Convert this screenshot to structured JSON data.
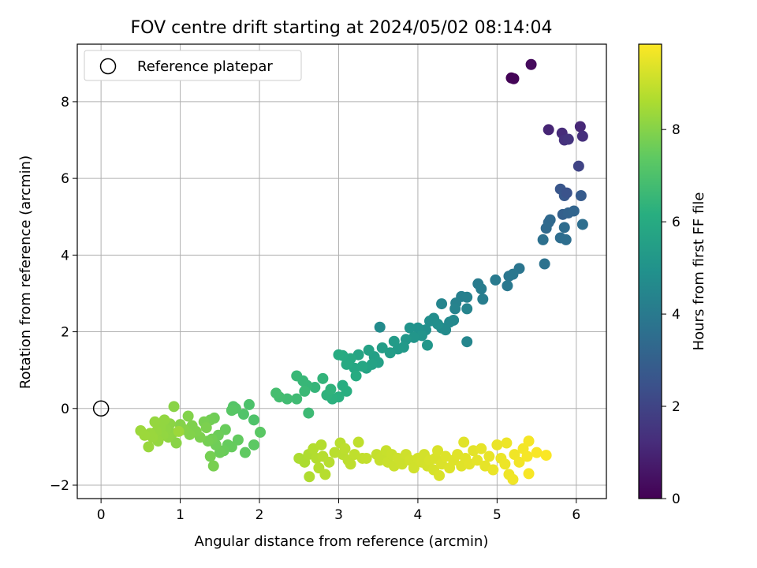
{
  "chart_data": {
    "type": "scatter",
    "title": "FOV centre drift starting at 2024/05/02 08:14:04",
    "xlabel": "Angular distance from reference (arcmin)",
    "ylabel": "Rotation from reference (arcmin)",
    "xlim": [
      -0.3,
      6.38
    ],
    "ylim": [
      -2.35,
      9.5
    ],
    "xticks": [
      "0",
      "1",
      "2",
      "3",
      "4",
      "5",
      "6"
    ],
    "xtick_values": [
      0,
      1,
      2,
      3,
      4,
      5,
      6
    ],
    "yticks": [
      "−2",
      "0",
      "2",
      "4",
      "6",
      "8"
    ],
    "ytick_values": [
      -2,
      0,
      2,
      4,
      6,
      8
    ],
    "grid": true,
    "legend": {
      "position": "top-left",
      "entry": "Reference platepar"
    },
    "reference_point": {
      "x": 0,
      "y": 0
    },
    "colorbar": {
      "label": "Hours from first FF file",
      "range": [
        0,
        9.85
      ],
      "ticks": [
        "0",
        "2",
        "4",
        "6",
        "8"
      ],
      "tick_values": [
        0,
        2,
        4,
        6,
        8
      ],
      "colormap": "viridis"
    },
    "points": [
      {
        "x": 5.18,
        "y": 8.62,
        "h": 0.05
      },
      {
        "x": 5.21,
        "y": 8.6,
        "h": 0.1
      },
      {
        "x": 5.43,
        "y": 8.97,
        "h": 0.25
      },
      {
        "x": 5.65,
        "y": 7.27,
        "h": 1.0
      },
      {
        "x": 5.82,
        "y": 7.18,
        "h": 1.2
      },
      {
        "x": 5.85,
        "y": 7.0,
        "h": 1.35
      },
      {
        "x": 5.9,
        "y": 7.02,
        "h": 1.45
      },
      {
        "x": 6.05,
        "y": 7.35,
        "h": 1.1
      },
      {
        "x": 6.08,
        "y": 7.1,
        "h": 1.3
      },
      {
        "x": 6.03,
        "y": 6.32,
        "h": 2.0
      },
      {
        "x": 5.8,
        "y": 5.72,
        "h": 2.6
      },
      {
        "x": 5.85,
        "y": 5.55,
        "h": 2.7
      },
      {
        "x": 5.88,
        "y": 5.62,
        "h": 2.5
      },
      {
        "x": 6.06,
        "y": 5.55,
        "h": 2.8
      },
      {
        "x": 5.83,
        "y": 5.06,
        "h": 3.0
      },
      {
        "x": 5.9,
        "y": 5.1,
        "h": 3.1
      },
      {
        "x": 5.97,
        "y": 5.15,
        "h": 3.2
      },
      {
        "x": 5.65,
        "y": 4.85,
        "h": 3.3
      },
      {
        "x": 5.67,
        "y": 4.92,
        "h": 3.35
      },
      {
        "x": 5.62,
        "y": 4.7,
        "h": 3.4
      },
      {
        "x": 5.85,
        "y": 4.72,
        "h": 3.45
      },
      {
        "x": 5.8,
        "y": 4.45,
        "h": 3.5
      },
      {
        "x": 5.87,
        "y": 4.4,
        "h": 3.55
      },
      {
        "x": 5.58,
        "y": 4.4,
        "h": 3.6
      },
      {
        "x": 6.08,
        "y": 4.8,
        "h": 3.55
      },
      {
        "x": 5.6,
        "y": 3.77,
        "h": 3.7
      },
      {
        "x": 5.28,
        "y": 3.65,
        "h": 3.8
      },
      {
        "x": 5.15,
        "y": 3.45,
        "h": 3.85
      },
      {
        "x": 5.2,
        "y": 3.5,
        "h": 3.9
      },
      {
        "x": 5.13,
        "y": 3.2,
        "h": 3.95
      },
      {
        "x": 4.98,
        "y": 3.35,
        "h": 4.0
      },
      {
        "x": 4.76,
        "y": 3.25,
        "h": 4.05
      },
      {
        "x": 4.8,
        "y": 3.12,
        "h": 4.1
      },
      {
        "x": 4.82,
        "y": 2.85,
        "h": 4.15
      },
      {
        "x": 4.55,
        "y": 2.92,
        "h": 4.2
      },
      {
        "x": 4.62,
        "y": 2.9,
        "h": 4.25
      },
      {
        "x": 4.48,
        "y": 2.75,
        "h": 4.3
      },
      {
        "x": 4.47,
        "y": 2.6,
        "h": 4.35
      },
      {
        "x": 4.62,
        "y": 2.6,
        "h": 4.4
      },
      {
        "x": 4.3,
        "y": 2.73,
        "h": 4.45
      },
      {
        "x": 4.62,
        "y": 1.74,
        "h": 4.5
      },
      {
        "x": 4.45,
        "y": 2.3,
        "h": 4.55
      },
      {
        "x": 4.4,
        "y": 2.25,
        "h": 4.6
      },
      {
        "x": 4.3,
        "y": 2.1,
        "h": 4.65
      },
      {
        "x": 4.35,
        "y": 2.05,
        "h": 4.7
      },
      {
        "x": 4.2,
        "y": 2.35,
        "h": 4.75
      },
      {
        "x": 4.15,
        "y": 2.28,
        "h": 4.8
      },
      {
        "x": 4.25,
        "y": 2.2,
        "h": 4.85
      },
      {
        "x": 4.1,
        "y": 2.05,
        "h": 4.9
      },
      {
        "x": 4.0,
        "y": 2.1,
        "h": 4.95
      },
      {
        "x": 3.9,
        "y": 2.1,
        "h": 5.0
      },
      {
        "x": 4.05,
        "y": 1.9,
        "h": 5.05
      },
      {
        "x": 3.95,
        "y": 1.85,
        "h": 5.1
      },
      {
        "x": 4.12,
        "y": 1.65,
        "h": 5.15
      },
      {
        "x": 3.85,
        "y": 1.8,
        "h": 5.2
      },
      {
        "x": 3.82,
        "y": 1.6,
        "h": 5.25
      },
      {
        "x": 3.75,
        "y": 1.55,
        "h": 5.3
      },
      {
        "x": 3.7,
        "y": 1.75,
        "h": 5.35
      },
      {
        "x": 3.65,
        "y": 1.45,
        "h": 5.4
      },
      {
        "x": 3.55,
        "y": 1.58,
        "h": 5.45
      },
      {
        "x": 3.52,
        "y": 2.12,
        "h": 4.7
      },
      {
        "x": 3.45,
        "y": 1.35,
        "h": 5.5
      },
      {
        "x": 3.5,
        "y": 1.2,
        "h": 5.55
      },
      {
        "x": 3.38,
        "y": 1.52,
        "h": 5.6
      },
      {
        "x": 3.42,
        "y": 1.15,
        "h": 5.65
      },
      {
        "x": 3.35,
        "y": 1.05,
        "h": 5.7
      },
      {
        "x": 3.25,
        "y": 1.4,
        "h": 5.75
      },
      {
        "x": 3.3,
        "y": 1.1,
        "h": 5.8
      },
      {
        "x": 3.2,
        "y": 1.05,
        "h": 5.85
      },
      {
        "x": 3.15,
        "y": 1.3,
        "h": 5.9
      },
      {
        "x": 3.1,
        "y": 1.15,
        "h": 5.95
      },
      {
        "x": 3.05,
        "y": 1.38,
        "h": 6.0
      },
      {
        "x": 3.0,
        "y": 1.4,
        "h": 6.02
      },
      {
        "x": 3.22,
        "y": 0.85,
        "h": 6.05
      },
      {
        "x": 3.05,
        "y": 0.6,
        "h": 6.1
      },
      {
        "x": 3.1,
        "y": 0.45,
        "h": 6.15
      },
      {
        "x": 3.0,
        "y": 0.3,
        "h": 6.2
      },
      {
        "x": 2.92,
        "y": 0.25,
        "h": 6.25
      },
      {
        "x": 2.85,
        "y": 0.35,
        "h": 6.3
      },
      {
        "x": 2.9,
        "y": 0.5,
        "h": 6.35
      },
      {
        "x": 2.8,
        "y": 0.78,
        "h": 6.4
      },
      {
        "x": 2.7,
        "y": 0.55,
        "h": 6.45
      },
      {
        "x": 2.6,
        "y": 0.6,
        "h": 6.5
      },
      {
        "x": 2.55,
        "y": 0.72,
        "h": 6.52
      },
      {
        "x": 2.47,
        "y": 0.85,
        "h": 6.55
      },
      {
        "x": 2.57,
        "y": 0.45,
        "h": 6.6
      },
      {
        "x": 2.62,
        "y": -0.12,
        "h": 6.65
      },
      {
        "x": 2.47,
        "y": 0.25,
        "h": 6.7
      },
      {
        "x": 2.35,
        "y": 0.25,
        "h": 6.75
      },
      {
        "x": 2.25,
        "y": 0.3,
        "h": 6.8
      },
      {
        "x": 2.21,
        "y": 0.4,
        "h": 6.85
      },
      {
        "x": 1.87,
        "y": 0.1,
        "h": 7.0
      },
      {
        "x": 1.93,
        "y": -0.3,
        "h": 7.05
      },
      {
        "x": 1.8,
        "y": -0.15,
        "h": 7.1
      },
      {
        "x": 1.67,
        "y": 0.05,
        "h": 7.15
      },
      {
        "x": 1.7,
        "y": 0.0,
        "h": 7.2
      },
      {
        "x": 1.65,
        "y": -0.05,
        "h": 7.25
      },
      {
        "x": 2.01,
        "y": -0.62,
        "h": 7.3
      },
      {
        "x": 1.93,
        "y": -0.95,
        "h": 7.35
      },
      {
        "x": 1.82,
        "y": -1.15,
        "h": 7.4
      },
      {
        "x": 1.73,
        "y": -0.82,
        "h": 7.45
      },
      {
        "x": 1.65,
        "y": -1.0,
        "h": 7.5
      },
      {
        "x": 1.6,
        "y": -0.95,
        "h": 7.5
      },
      {
        "x": 1.57,
        "y": -0.55,
        "h": 7.55
      },
      {
        "x": 1.55,
        "y": -1.1,
        "h": 7.55
      },
      {
        "x": 1.5,
        "y": -1.15,
        "h": 7.6
      },
      {
        "x": 1.48,
        "y": -0.7,
        "h": 7.6
      },
      {
        "x": 1.45,
        "y": -0.95,
        "h": 7.65
      },
      {
        "x": 1.43,
        "y": -0.25,
        "h": 7.65
      },
      {
        "x": 1.38,
        "y": -0.3,
        "h": 7.7
      },
      {
        "x": 1.4,
        "y": -0.8,
        "h": 7.7
      },
      {
        "x": 1.35,
        "y": -0.85,
        "h": 7.75
      },
      {
        "x": 1.38,
        "y": -1.25,
        "h": 7.75
      },
      {
        "x": 1.42,
        "y": -1.5,
        "h": 7.8
      },
      {
        "x": 1.3,
        "y": -0.35,
        "h": 7.8
      },
      {
        "x": 1.33,
        "y": -0.5,
        "h": 7.85
      },
      {
        "x": 1.25,
        "y": -0.75,
        "h": 7.85
      },
      {
        "x": 1.2,
        "y": -0.6,
        "h": 7.9
      },
      {
        "x": 1.15,
        "y": -0.45,
        "h": 7.9
      },
      {
        "x": 1.1,
        "y": -0.2,
        "h": 7.95
      },
      {
        "x": 1.12,
        "y": -0.68,
        "h": 7.95
      },
      {
        "x": 1.05,
        "y": -0.55,
        "h": 8.0
      },
      {
        "x": 1.0,
        "y": -0.42,
        "h": 8.0
      },
      {
        "x": 0.95,
        "y": -0.9,
        "h": 8.05
      },
      {
        "x": 0.92,
        "y": 0.05,
        "h": 8.05
      },
      {
        "x": 0.9,
        "y": -0.65,
        "h": 8.1
      },
      {
        "x": 0.87,
        "y": -0.4,
        "h": 8.1
      },
      {
        "x": 0.85,
        "y": -0.75,
        "h": 8.15
      },
      {
        "x": 0.82,
        "y": -0.55,
        "h": 8.15
      },
      {
        "x": 0.8,
        "y": -0.3,
        "h": 8.2
      },
      {
        "x": 0.78,
        "y": -0.7,
        "h": 8.2
      },
      {
        "x": 0.75,
        "y": -0.5,
        "h": 8.2
      },
      {
        "x": 0.72,
        "y": -0.85,
        "h": 8.25
      },
      {
        "x": 0.7,
        "y": -0.6,
        "h": 8.25
      },
      {
        "x": 0.68,
        "y": -0.35,
        "h": 8.25
      },
      {
        "x": 0.65,
        "y": -0.75,
        "h": 8.3
      },
      {
        "x": 0.62,
        "y": -0.65,
        "h": 8.3
      },
      {
        "x": 0.6,
        "y": -1.0,
        "h": 8.3
      },
      {
        "x": 0.55,
        "y": -0.7,
        "h": 8.35
      },
      {
        "x": 0.5,
        "y": -0.58,
        "h": 8.35
      },
      {
        "x": 0.98,
        "y": -0.6,
        "h": 8.35
      },
      {
        "x": 2.5,
        "y": -1.3,
        "h": 8.6
      },
      {
        "x": 2.57,
        "y": -1.4,
        "h": 8.6
      },
      {
        "x": 2.62,
        "y": -1.2,
        "h": 8.65
      },
      {
        "x": 2.63,
        "y": -1.78,
        "h": 8.65
      },
      {
        "x": 2.68,
        "y": -1.05,
        "h": 8.7
      },
      {
        "x": 2.72,
        "y": -1.3,
        "h": 8.7
      },
      {
        "x": 2.75,
        "y": -1.55,
        "h": 8.72
      },
      {
        "x": 2.78,
        "y": -0.95,
        "h": 8.72
      },
      {
        "x": 2.8,
        "y": -1.25,
        "h": 8.75
      },
      {
        "x": 2.83,
        "y": -1.72,
        "h": 8.75
      },
      {
        "x": 2.88,
        "y": -1.4,
        "h": 8.78
      },
      {
        "x": 2.95,
        "y": -1.15,
        "h": 8.8
      },
      {
        "x": 3.02,
        "y": -0.9,
        "h": 8.8
      },
      {
        "x": 3.05,
        "y": -1.2,
        "h": 8.82
      },
      {
        "x": 3.08,
        "y": -1.05,
        "h": 8.85
      },
      {
        "x": 3.12,
        "y": -1.35,
        "h": 8.85
      },
      {
        "x": 3.15,
        "y": -1.45,
        "h": 8.88
      },
      {
        "x": 3.2,
        "y": -1.2,
        "h": 8.9
      },
      {
        "x": 3.25,
        "y": -0.88,
        "h": 8.9
      },
      {
        "x": 3.3,
        "y": -1.3,
        "h": 8.92
      },
      {
        "x": 3.35,
        "y": -1.3,
        "h": 8.95
      },
      {
        "x": 3.48,
        "y": -1.2,
        "h": 8.97
      },
      {
        "x": 3.52,
        "y": -1.35,
        "h": 9.0
      },
      {
        "x": 3.55,
        "y": -1.25,
        "h": 9.0
      },
      {
        "x": 3.6,
        "y": -1.1,
        "h": 9.02
      },
      {
        "x": 3.62,
        "y": -1.4,
        "h": 9.05
      },
      {
        "x": 3.67,
        "y": -1.2,
        "h": 9.05
      },
      {
        "x": 3.7,
        "y": -1.5,
        "h": 9.07
      },
      {
        "x": 3.75,
        "y": -1.3,
        "h": 9.1
      },
      {
        "x": 3.8,
        "y": -1.45,
        "h": 9.1
      },
      {
        "x": 3.85,
        "y": -1.2,
        "h": 9.12
      },
      {
        "x": 3.9,
        "y": -1.35,
        "h": 9.15
      },
      {
        "x": 3.95,
        "y": -1.55,
        "h": 9.15
      },
      {
        "x": 4.0,
        "y": -1.3,
        "h": 9.18
      },
      {
        "x": 4.05,
        "y": -1.4,
        "h": 9.2
      },
      {
        "x": 4.08,
        "y": -1.2,
        "h": 9.2
      },
      {
        "x": 4.12,
        "y": -1.5,
        "h": 9.22
      },
      {
        "x": 4.15,
        "y": -1.35,
        "h": 9.25
      },
      {
        "x": 4.2,
        "y": -1.6,
        "h": 9.25
      },
      {
        "x": 4.22,
        "y": -1.3,
        "h": 9.28
      },
      {
        "x": 4.25,
        "y": -1.1,
        "h": 9.3
      },
      {
        "x": 4.27,
        "y": -1.75,
        "h": 9.3
      },
      {
        "x": 4.3,
        "y": -1.45,
        "h": 9.32
      },
      {
        "x": 4.35,
        "y": -1.25,
        "h": 9.35
      },
      {
        "x": 4.4,
        "y": -1.55,
        "h": 9.35
      },
      {
        "x": 4.45,
        "y": -1.35,
        "h": 9.38
      },
      {
        "x": 4.5,
        "y": -1.2,
        "h": 9.4
      },
      {
        "x": 4.55,
        "y": -1.5,
        "h": 9.4
      },
      {
        "x": 4.58,
        "y": -0.88,
        "h": 9.42
      },
      {
        "x": 4.6,
        "y": -1.3,
        "h": 9.42
      },
      {
        "x": 4.65,
        "y": -1.45,
        "h": 9.45
      },
      {
        "x": 4.7,
        "y": -1.1,
        "h": 9.45
      },
      {
        "x": 4.75,
        "y": -1.35,
        "h": 9.48
      },
      {
        "x": 4.8,
        "y": -1.05,
        "h": 9.5
      },
      {
        "x": 4.85,
        "y": -1.5,
        "h": 9.5
      },
      {
        "x": 4.9,
        "y": -1.25,
        "h": 9.52
      },
      {
        "x": 4.95,
        "y": -1.6,
        "h": 9.55
      },
      {
        "x": 5.0,
        "y": -0.95,
        "h": 9.55
      },
      {
        "x": 5.05,
        "y": -1.3,
        "h": 9.58
      },
      {
        "x": 5.1,
        "y": -1.45,
        "h": 9.6
      },
      {
        "x": 5.12,
        "y": -0.9,
        "h": 9.6
      },
      {
        "x": 5.15,
        "y": -1.72,
        "h": 9.62
      },
      {
        "x": 5.2,
        "y": -1.85,
        "h": 9.65
      },
      {
        "x": 5.22,
        "y": -1.2,
        "h": 9.65
      },
      {
        "x": 5.28,
        "y": -1.4,
        "h": 9.68
      },
      {
        "x": 5.33,
        "y": -1.05,
        "h": 9.7
      },
      {
        "x": 5.38,
        "y": -1.25,
        "h": 9.72
      },
      {
        "x": 5.4,
        "y": -0.85,
        "h": 9.72
      },
      {
        "x": 5.4,
        "y": -1.7,
        "h": 9.75
      },
      {
        "x": 5.5,
        "y": -1.15,
        "h": 9.78
      },
      {
        "x": 5.62,
        "y": -1.22,
        "h": 9.8
      }
    ]
  }
}
